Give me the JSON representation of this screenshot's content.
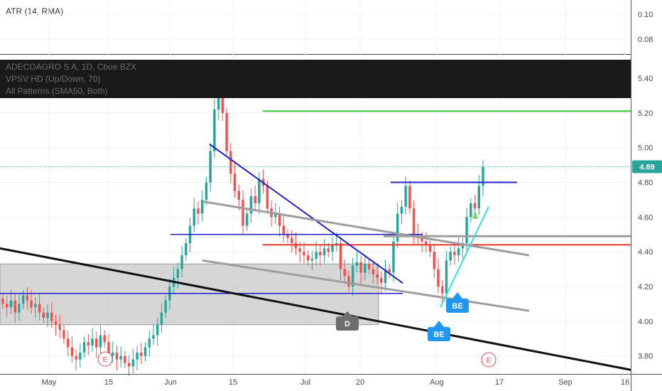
{
  "indicator_pane": {
    "label": "ATR (14, RMA)",
    "ticks": [
      "0.10",
      "0.08"
    ]
  },
  "legend": {
    "title": "ADECOAGRO S A, 1D, Cboe BZX",
    "line2": "VPSV HD (Up/Down, 70)",
    "line3": "All Patterns (SMA50, Both)"
  },
  "colors": {
    "up": "#26a69a",
    "down": "#ef5350",
    "last_price": "#26a69a",
    "green_line": "#33cc33",
    "blue_line": "#1f1fcc",
    "gray_line": "#9e9e9e",
    "red_line": "#e53935",
    "cyan_line": "#33e0e0",
    "badge_blue": "#2196f3",
    "badge_gray": "#6d6d6d",
    "dark_band": "#1a1a1a",
    "zone": "#c8c8c8"
  },
  "last_price_label": "4.89",
  "pattern_badges": [
    {
      "text": "BE"
    },
    {
      "text": "BE"
    },
    {
      "text": "D"
    }
  ],
  "earnings_markers": [
    {
      "text": "E"
    },
    {
      "text": "E"
    }
  ],
  "chart_data": {
    "type": "candlestick",
    "title": "ADECOAGRO S A, 1D, Cboe BZX",
    "ylim": [
      3.71,
      5.63
    ],
    "y_ticks": [
      "5.40",
      "5.20",
      "5.00",
      "4.80",
      "4.60",
      "4.40",
      "4.20",
      "4.00",
      "3.80"
    ],
    "x_ticks": [
      "May",
      "15",
      "Jun",
      "15",
      "Jul",
      "20",
      "Aug",
      "17",
      "Sep",
      "16"
    ],
    "last_price": 4.89,
    "horizontal_levels": [
      5.21,
      4.8,
      4.5,
      4.49,
      4.44,
      4.16
    ],
    "close_series": [
      4.1,
      4.08,
      4.12,
      4.05,
      4.1,
      4.15,
      4.12,
      4.08,
      4.1,
      4.05,
      4.02,
      4.05,
      4.0,
      3.98,
      3.95,
      3.9,
      3.85,
      3.8,
      3.78,
      3.82,
      3.88,
      3.86,
      3.9,
      3.85,
      3.92,
      3.88,
      3.8,
      3.82,
      3.78,
      3.8,
      3.76,
      3.74,
      3.78,
      3.82,
      3.8,
      3.85,
      3.9,
      3.92,
      3.98,
      4.05,
      4.12,
      4.2,
      4.25,
      4.3,
      4.38,
      4.45,
      4.55,
      4.65,
      4.62,
      4.7,
      4.8,
      4.98,
      5.22,
      5.35,
      5.2,
      4.98,
      4.85,
      4.75,
      4.7,
      4.55,
      4.62,
      4.72,
      4.68,
      4.82,
      4.78,
      4.65,
      4.6,
      4.62,
      4.55,
      4.5,
      4.48,
      4.45,
      4.42,
      4.4,
      4.38,
      4.35,
      4.36,
      4.4,
      4.38,
      4.42,
      4.4,
      4.44,
      4.45,
      4.3,
      4.26,
      4.2,
      4.32,
      4.34,
      4.28,
      4.33,
      4.3,
      4.27,
      4.25,
      4.22,
      4.3,
      4.28,
      4.46,
      4.62,
      4.66,
      4.78,
      4.65,
      4.5,
      4.48,
      4.46,
      4.44,
      4.4,
      4.3,
      4.2,
      4.16,
      4.35,
      4.4,
      4.38,
      4.42,
      4.45,
      4.6,
      4.68,
      4.65,
      4.78,
      4.89
    ]
  }
}
